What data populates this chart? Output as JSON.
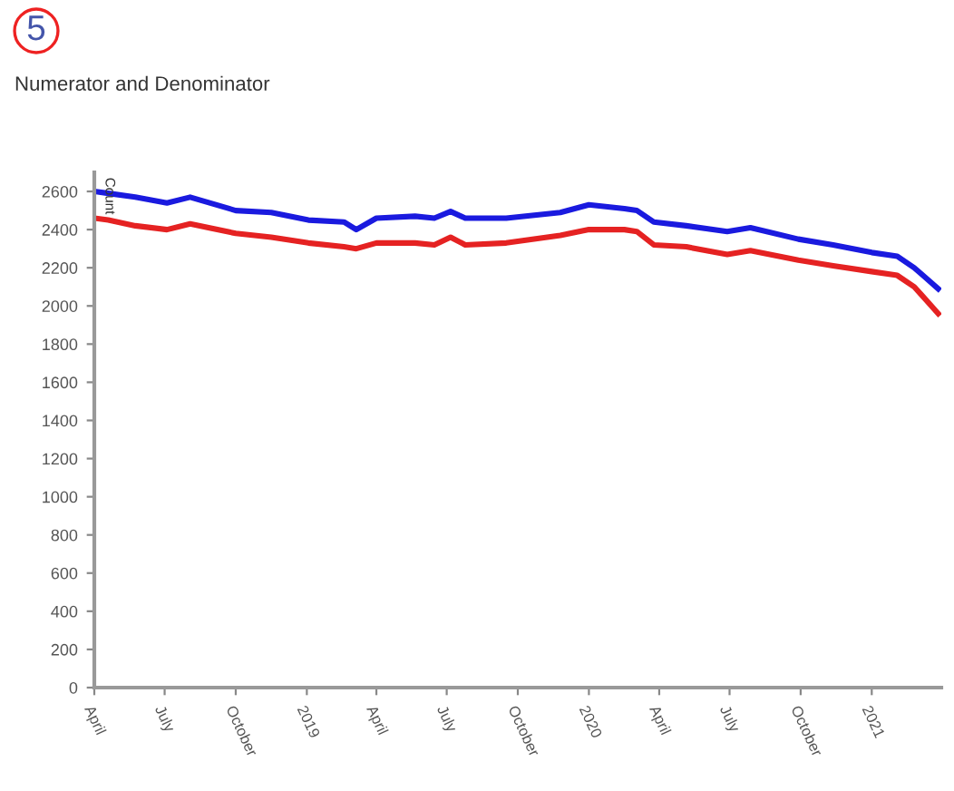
{
  "chart_data": {
    "type": "line",
    "title": "Numerator and Denominator",
    "ylabel": "Count",
    "annotations": [
      "5"
    ],
    "x": [
      "2018-04-01",
      "2018-04-19",
      "2018-05-24",
      "2018-07-04",
      "2018-08-03",
      "2018-10-01",
      "2018-11-16",
      "2019-01-03",
      "2019-02-18",
      "2019-03-06",
      "2019-04-01",
      "2019-05-21",
      "2019-06-15",
      "2019-07-06",
      "2019-07-25",
      "2019-09-16",
      "2019-11-25",
      "2020-01-01",
      "2020-02-16",
      "2020-03-03",
      "2020-03-25",
      "2020-05-06",
      "2020-06-28",
      "2020-07-28",
      "2020-09-28",
      "2020-11-12",
      "2021-01-01",
      "2021-02-03",
      "2021-02-25",
      "2021-03-28"
    ],
    "series": [
      {
        "color": "#1a1adf",
        "values": [
          2600,
          2590,
          2570,
          2540,
          2570,
          2500,
          2490,
          2450,
          2440,
          2400,
          2460,
          2470,
          2460,
          2495,
          2460,
          2460,
          2490,
          2530,
          2510,
          2500,
          2440,
          2420,
          2390,
          2410,
          2350,
          2320,
          2280,
          2260,
          2200,
          2090
        ]
      },
      {
        "color": "#e52222",
        "values": [
          2460,
          2450,
          2420,
          2400,
          2430,
          2380,
          2360,
          2330,
          2310,
          2300,
          2330,
          2330,
          2320,
          2360,
          2320,
          2330,
          2370,
          2400,
          2400,
          2390,
          2320,
          2310,
          2270,
          2290,
          2240,
          2210,
          2180,
          2160,
          2100,
          1960
        ]
      }
    ],
    "xlim": [
      "2018-04-01",
      "2021-04-01"
    ],
    "xticks": [
      {
        "value": "2018-04-01",
        "label": "April"
      },
      {
        "value": "2018-07-01",
        "label": "July"
      },
      {
        "value": "2018-10-01",
        "label": "October"
      },
      {
        "value": "2019-01-01",
        "label": "2019"
      },
      {
        "value": "2019-04-01",
        "label": "April"
      },
      {
        "value": "2019-07-01",
        "label": "July"
      },
      {
        "value": "2019-10-01",
        "label": "October"
      },
      {
        "value": "2020-01-01",
        "label": "2020"
      },
      {
        "value": "2020-04-01",
        "label": "April"
      },
      {
        "value": "2020-07-01",
        "label": "July"
      },
      {
        "value": "2020-10-01",
        "label": "October"
      },
      {
        "value": "2021-01-01",
        "label": "2021"
      }
    ],
    "ylim": [
      0,
      2700
    ],
    "yticks": [
      0,
      200,
      400,
      600,
      800,
      1000,
      1200,
      1400,
      1600,
      1800,
      2000,
      2200,
      2400,
      2600
    ],
    "grid": false,
    "marker": "none",
    "line_style": "solid"
  }
}
